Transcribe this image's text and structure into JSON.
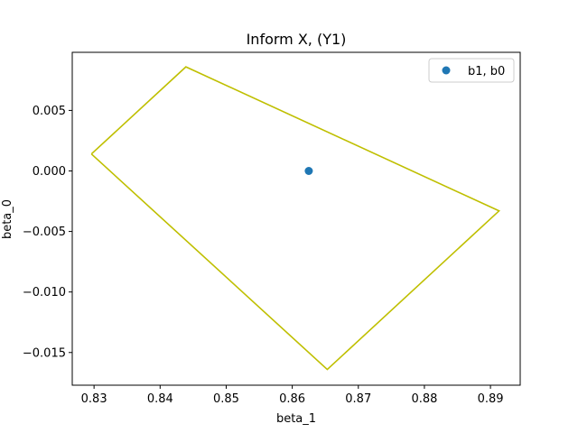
{
  "chart_data": {
    "type": "scatter",
    "title": "Inform X, (Y1)",
    "xlabel": "beta_1",
    "ylabel": "beta_0",
    "xlim": [
      0.8267,
      0.8945
    ],
    "ylim": [
      -0.0177,
      0.0098
    ],
    "xticks": [
      0.83,
      0.84,
      0.85,
      0.86,
      0.87,
      0.88,
      0.89
    ],
    "xtick_labels": [
      "0.83",
      "0.84",
      "0.85",
      "0.86",
      "0.87",
      "0.88",
      "0.89"
    ],
    "yticks": [
      0.005,
      0.0,
      -0.005,
      -0.01,
      -0.015
    ],
    "ytick_labels": [
      "0.005",
      "0.000",
      "−0.005",
      "−0.010",
      "−0.015"
    ],
    "grid": false,
    "legend_position": "upper-right",
    "series": [
      {
        "name": "b1, b0",
        "kind": "scatter",
        "color": "#1f77b4",
        "points": [
          [
            0.8625,
            0.0
          ]
        ]
      }
    ],
    "region": {
      "kind": "polygon-outline",
      "color": "#bfbf00",
      "points": [
        [
          0.8296,
          0.0014
        ],
        [
          0.8439,
          0.0086
        ],
        [
          0.8913,
          -0.0033
        ],
        [
          0.8653,
          -0.0164
        ],
        [
          0.8296,
          0.0014
        ]
      ]
    }
  }
}
